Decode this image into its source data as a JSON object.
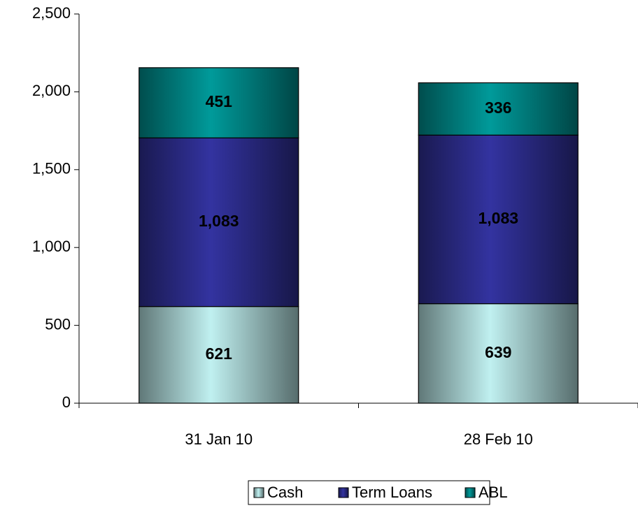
{
  "chart_data": {
    "type": "stacked_bar",
    "categories": [
      "31 Jan 10",
      "28 Feb 10"
    ],
    "series": [
      {
        "name": "Cash",
        "color": "#c0f0f0",
        "values": [
          621,
          639
        ],
        "value_labels": [
          "621",
          "639"
        ]
      },
      {
        "name": "Term Loans",
        "color": "#3333a0",
        "values": [
          1083,
          1083
        ],
        "value_labels": [
          "1,083",
          "1,083"
        ]
      },
      {
        "name": "ABL",
        "color": "#009a9a",
        "values": [
          451,
          336
        ],
        "value_labels": [
          "451",
          "336"
        ]
      }
    ],
    "ylim": [
      0,
      2500
    ],
    "yticks": [
      0,
      500,
      {
        "value": 1000,
        "label": "1,000"
      },
      {
        "value": 1500,
        "label": "1,500"
      },
      {
        "value": 2000,
        "label": "2,000"
      },
      {
        "value": 2500,
        "label": "2,500"
      }
    ],
    "legend": "bottom"
  }
}
